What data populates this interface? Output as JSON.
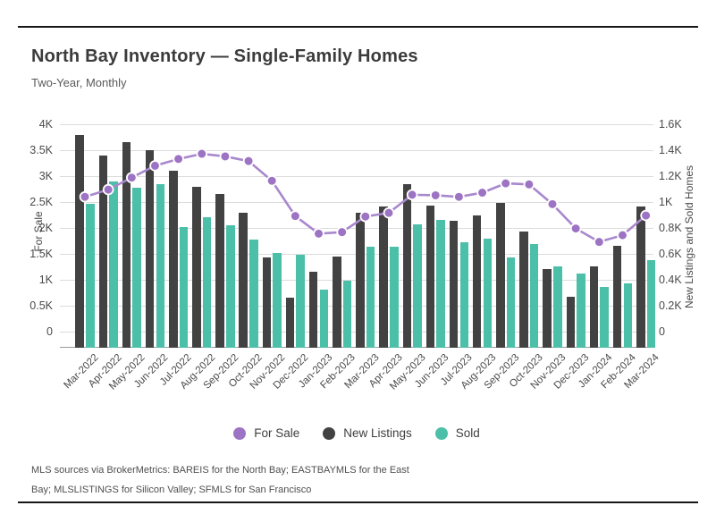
{
  "page": {
    "title": "North Bay Inventory — Single-Family Homes",
    "subtitle": "Two-Year, Monthly"
  },
  "chart_data": {
    "type": "bar",
    "title": "North Bay Inventory — Single-Family Homes",
    "subtitle": "Two-Year, Monthly",
    "categories": [
      "Mar-2022",
      "Apr-2022",
      "May-2022",
      "Jun-2022",
      "Jul-2022",
      "Aug-2022",
      "Sep-2022",
      "Oct-2022",
      "Nov-2022",
      "Dec-2022",
      "Jan-2023",
      "Feb-2023",
      "Mar-2023",
      "Apr-2023",
      "May-2023",
      "Jun-2023",
      "Jul-2023",
      "Aug-2023",
      "Sep-2023",
      "Oct-2023",
      "Nov-2023",
      "Dec-2023",
      "Jan-2024",
      "Feb-2024",
      "Mar-2024"
    ],
    "series": [
      {
        "name": "For Sale",
        "type": "line",
        "axis": "left",
        "color": "#a888cd",
        "point_color": "#9d74c3",
        "values": [
          2600,
          2740,
          2970,
          3200,
          3330,
          3430,
          3380,
          3290,
          2910,
          2230,
          1890,
          1920,
          2220,
          2290,
          2640,
          2630,
          2600,
          2680,
          2860,
          2840,
          2460,
          1990,
          1730,
          1860,
          2240
        ]
      },
      {
        "name": "New Listings",
        "type": "bar",
        "axis": "right",
        "color": "#424242",
        "values": [
          1515,
          1360,
          1460,
          1400,
          1240,
          1120,
          1060,
          920,
          570,
          260,
          460,
          580,
          915,
          965,
          1135,
          975,
          855,
          900,
          990,
          775,
          480,
          270,
          505,
          665,
          965
        ]
      },
      {
        "name": "Sold",
        "type": "bar",
        "axis": "right",
        "color": "#4cbfa9",
        "values": [
          985,
          1160,
          1110,
          1135,
          810,
          885,
          820,
          710,
          610,
          590,
          325,
          390,
          655,
          655,
          825,
          860,
          690,
          715,
          570,
          675,
          505,
          445,
          345,
          370,
          555
        ]
      }
    ],
    "left_axis": {
      "label": "For Sale",
      "range": [
        0,
        4000
      ],
      "ticks": [
        "0",
        "0.5K",
        "1K",
        "1.5K",
        "2K",
        "2.5K",
        "3K",
        "3.5K",
        "4K"
      ]
    },
    "right_axis": {
      "label": "New Listings and Sold Homes",
      "range": [
        0,
        1600
      ],
      "ticks": [
        "0",
        "0.2K",
        "0.4K",
        "0.6K",
        "0.8K",
        "1K",
        "1.2K",
        "1.4K",
        "1.6K"
      ]
    },
    "grid": true,
    "legend_position": "bottom",
    "legend": [
      "For Sale",
      "New Listings",
      "Sold"
    ]
  },
  "footer": {
    "line1": "MLS sources via BrokerMetrics: BAREIS for the North Bay; EASTBAYMLS for the East",
    "line2": "Bay; MLSLISTINGS for Silicon Valley; SFMLS for San Francisco"
  },
  "colors": {
    "for_sale": "#a888cd",
    "for_sale_point": "#9d74c3",
    "new_listings": "#424242",
    "sold": "#4cbfa9",
    "gridline": "#dcdcdc",
    "rule": "#161616"
  }
}
